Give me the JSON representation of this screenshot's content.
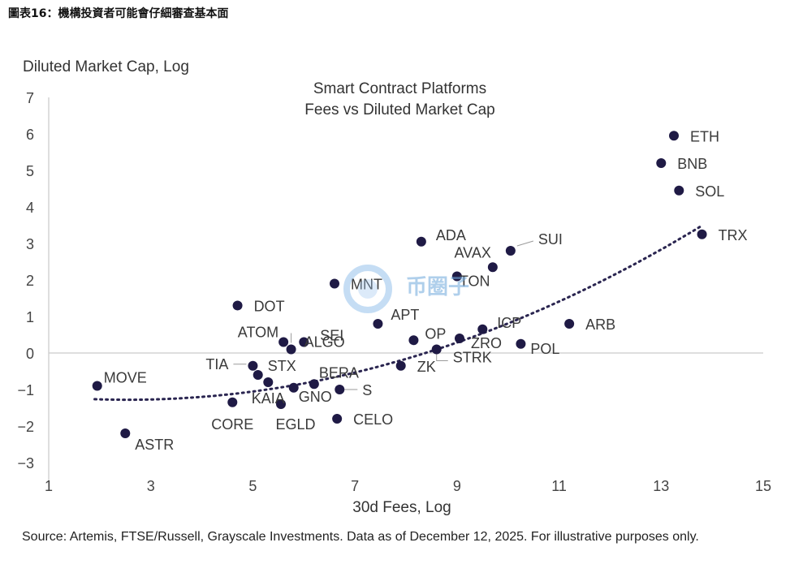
{
  "figure_header": "圖表16：機構投資者可能會仔細審查基本面",
  "watermark_text": "币圈子",
  "chart_data": {
    "type": "scatter",
    "title": "Smart Contract Platforms",
    "subtitle": "Fees vs Diluted Market Cap",
    "xlabel": "30d Fees, Log",
    "ylabel": "Diluted Market Cap, Log",
    "xlim": [
      1,
      15
    ],
    "ylim": [
      -3,
      7
    ],
    "xticks": [
      1,
      3,
      5,
      7,
      9,
      11,
      13,
      15
    ],
    "yticks": [
      -3,
      -2,
      -1,
      0,
      1,
      2,
      3,
      4,
      5,
      6,
      7
    ],
    "trendline": {
      "type": "polynomial",
      "style": "dotted",
      "x_start": 1.9,
      "x_end": 13.8,
      "a": 0.0377,
      "b": -0.1925,
      "c": -1.0345
    },
    "points": [
      {
        "label": "ETH",
        "x": 13.25,
        "y": 5.95
      },
      {
        "label": "BNB",
        "x": 13.0,
        "y": 5.2
      },
      {
        "label": "SOL",
        "x": 13.35,
        "y": 4.45
      },
      {
        "label": "TRX",
        "x": 13.8,
        "y": 3.25
      },
      {
        "label": "ADA",
        "x": 8.3,
        "y": 3.05
      },
      {
        "label": "SUI",
        "x": 10.05,
        "y": 2.8
      },
      {
        "label": "AVAX",
        "x": 9.7,
        "y": 2.35
      },
      {
        "label": "TON",
        "x": 9.0,
        "y": 2.1
      },
      {
        "label": "MNT",
        "x": 6.6,
        "y": 1.9
      },
      {
        "label": "DOT",
        "x": 4.7,
        "y": 1.3
      },
      {
        "label": "APT",
        "x": 7.45,
        "y": 0.8
      },
      {
        "label": "ARB",
        "x": 11.2,
        "y": 0.8
      },
      {
        "label": "ICP",
        "x": 9.5,
        "y": 0.65
      },
      {
        "label": "ATOM",
        "x": 5.6,
        "y": 0.3
      },
      {
        "label": "ALGO",
        "x": 5.75,
        "y": 0.1
      },
      {
        "label": "SEI",
        "x": 6.0,
        "y": 0.3
      },
      {
        "label": "OP",
        "x": 8.15,
        "y": 0.35
      },
      {
        "label": "ZRO",
        "x": 9.05,
        "y": 0.4
      },
      {
        "label": "POL",
        "x": 10.25,
        "y": 0.25
      },
      {
        "label": "STRK",
        "x": 8.6,
        "y": 0.1
      },
      {
        "label": "TIA",
        "x": 5.0,
        "y": -0.35
      },
      {
        "label": "STX",
        "x": 5.1,
        "y": -0.6
      },
      {
        "label": "ZK",
        "x": 7.9,
        "y": -0.35
      },
      {
        "label": "MOVE",
        "x": 1.95,
        "y": -0.9
      },
      {
        "label": "BERA",
        "x": 6.2,
        "y": -0.85
      },
      {
        "label": "KAIA",
        "x": 5.3,
        "y": -0.8
      },
      {
        "label": "GNO",
        "x": 5.8,
        "y": -0.95
      },
      {
        "label": "S",
        "x": 6.7,
        "y": -1.0
      },
      {
        "label": "CORE",
        "x": 4.6,
        "y": -1.35
      },
      {
        "label": "EGLD",
        "x": 5.55,
        "y": -1.4
      },
      {
        "label": "CELO",
        "x": 6.65,
        "y": -1.8
      },
      {
        "label": "ASTR",
        "x": 2.5,
        "y": -2.2
      }
    ]
  },
  "source_text": "Source: Artemis, FTSE/Russell, Grayscale Investments. Data as of December 12, 2025. For illustrative purposes only."
}
